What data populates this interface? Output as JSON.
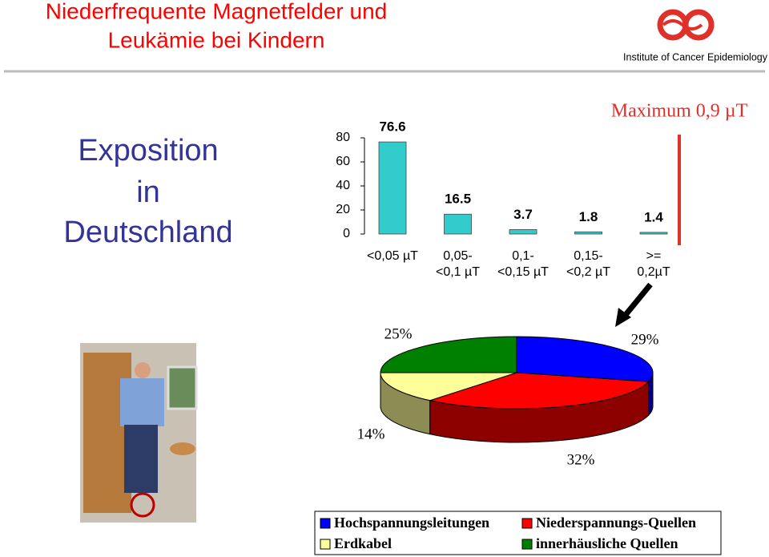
{
  "header": {
    "title_line1": "Niederfrequente Magnetfelder und",
    "title_line2": "Leukämie bei Kindern",
    "institute": "Institute of Cancer Epidemiology"
  },
  "side_heading": {
    "line1": "Exposition",
    "line2": "in",
    "line3": "Deutschland"
  },
  "chart_data": [
    {
      "type": "bar",
      "categories": [
        "<0,05 µT",
        "0,05-\n<0,1 µT",
        "0,1-\n<0,15 µT",
        "0,15-\n<0,2 µT",
        ">=\n0,2µT"
      ],
      "values": [
        76.6,
        16.5,
        3.7,
        1.8,
        1.4
      ],
      "color": "#33cccc",
      "ylim": [
        0,
        80
      ],
      "yticks": [
        0,
        20,
        40,
        60,
        80
      ],
      "annotation": "Maximum 0,9 µT"
    },
    {
      "type": "pie",
      "categories": [
        "Hochspannungsleitungen",
        "Niederspannungs-Quellen",
        "Erdkabel",
        "innerhäusliche Quellen"
      ],
      "values": [
        29,
        32,
        14,
        25
      ],
      "value_labels": [
        "29%",
        "32%",
        "14%",
        "25%"
      ],
      "colors": [
        "#0000ff",
        "#ff0000",
        "#ffff99",
        "#008000"
      ],
      "legend": "bottom"
    }
  ]
}
